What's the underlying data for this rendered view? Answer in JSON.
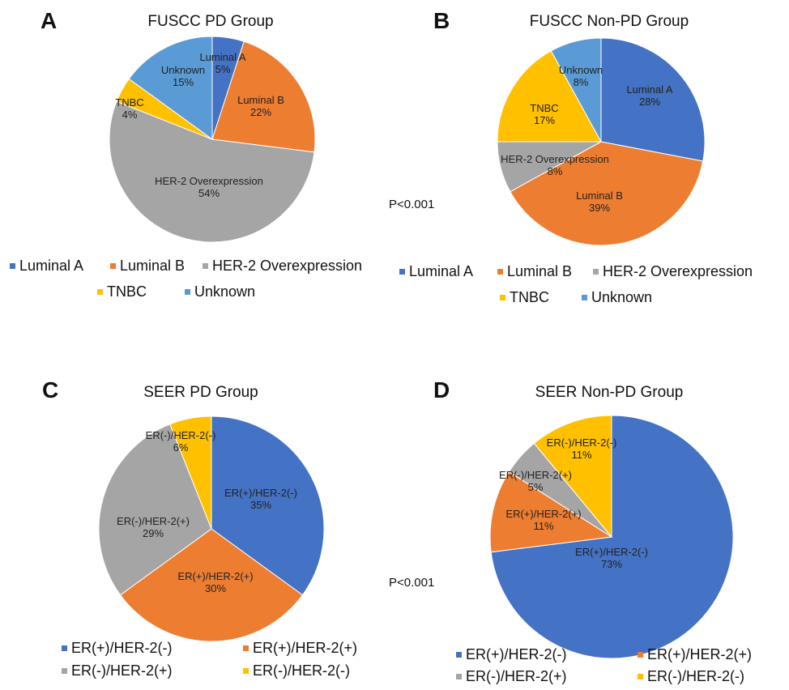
{
  "pvalues": {
    "top": "P<0.001",
    "bottom": "P<0.001"
  },
  "chart_data": [
    {
      "type": "pie",
      "panel": "A",
      "title": "FUSCC PD Group",
      "slices": [
        {
          "label": "Luminal A",
          "value": 5,
          "pct": "5%",
          "color": "#4472C4"
        },
        {
          "label": "Luminal B",
          "value": 22,
          "pct": "22%",
          "color": "#ED7D31"
        },
        {
          "label": "HER-2 Overexpression",
          "value": 54,
          "pct": "54%",
          "color": "#A5A5A5"
        },
        {
          "label": "TNBC",
          "value": 4,
          "pct": "4%",
          "color": "#FFC000"
        },
        {
          "label": "Unknown",
          "value": 15,
          "pct": "15%",
          "color": "#5B9BD5"
        }
      ],
      "legend": [
        "Luminal A",
        "Luminal B",
        "HER-2 Overexpression",
        "TNBC",
        "Unknown"
      ],
      "legend_position": "bottom"
    },
    {
      "type": "pie",
      "panel": "B",
      "title": "FUSCC Non-PD Group",
      "slices": [
        {
          "label": "Luminal A",
          "value": 28,
          "pct": "28%",
          "color": "#4472C4"
        },
        {
          "label": "Luminal B",
          "value": 39,
          "pct": "39%",
          "color": "#ED7D31"
        },
        {
          "label": "HER-2 Overexpression",
          "value": 8,
          "pct": "8%",
          "color": "#A5A5A5"
        },
        {
          "label": "TNBC",
          "value": 17,
          "pct": "17%",
          "color": "#FFC000"
        },
        {
          "label": "Unknown",
          "value": 8,
          "pct": "8%",
          "color": "#5B9BD5"
        }
      ],
      "legend": [
        "Luminal A",
        "Luminal B",
        "HER-2 Overexpression",
        "TNBC",
        "Unknown"
      ],
      "legend_position": "bottom"
    },
    {
      "type": "pie",
      "panel": "C",
      "title": "SEER PD Group",
      "slices": [
        {
          "label": "ER(+)/HER-2(-)",
          "value": 35,
          "pct": "35%",
          "color": "#4472C4"
        },
        {
          "label": "ER(+)/HER-2(+)",
          "value": 30,
          "pct": "30%",
          "color": "#ED7D31"
        },
        {
          "label": "ER(-)/HER-2(+)",
          "value": 29,
          "pct": "29%",
          "color": "#A5A5A5"
        },
        {
          "label": "ER(-)/HER-2(-)",
          "value": 6,
          "pct": "6%",
          "color": "#FFC000"
        }
      ],
      "legend": [
        "ER(+)/HER-2(-)",
        "ER(+)/HER-2(+)",
        "ER(-)/HER-2(+)",
        "ER(-)/HER-2(-)"
      ],
      "legend_position": "bottom"
    },
    {
      "type": "pie",
      "panel": "D",
      "title": "SEER Non-PD Group",
      "slices": [
        {
          "label": "ER(+)/HER-2(-)",
          "value": 73,
          "pct": "73%",
          "color": "#4472C4"
        },
        {
          "label": "ER(+)/HER-2(+)",
          "value": 11,
          "pct": "11%",
          "color": "#ED7D31"
        },
        {
          "label": "ER(-)/HER-2(+)",
          "value": 5,
          "pct": "5%",
          "color": "#A5A5A5"
        },
        {
          "label": "ER(-)/HER-2(-)",
          "value": 11,
          "pct": "11%",
          "color": "#FFC000"
        }
      ],
      "legend": [
        "ER(+)/HER-2(-)",
        "ER(+)/HER-2(+)",
        "ER(-)/HER-2(+)",
        "ER(-)/HER-2(-)"
      ],
      "legend_position": "bottom"
    }
  ]
}
